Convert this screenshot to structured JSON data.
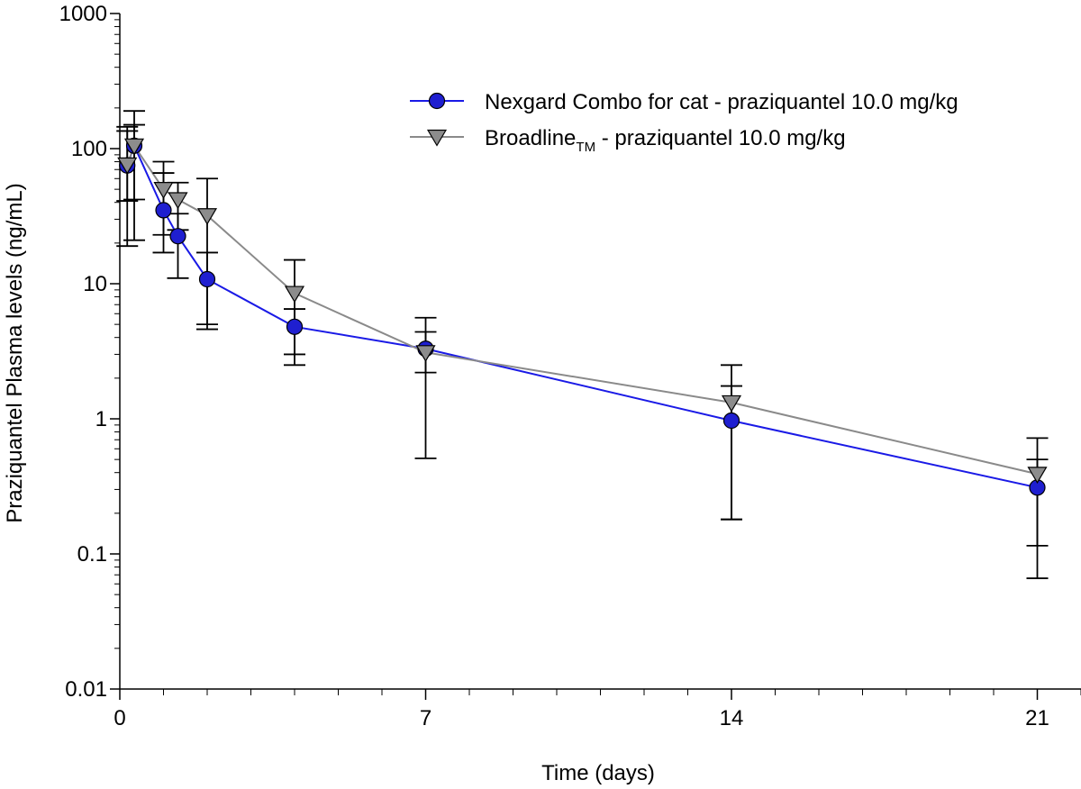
{
  "chart_data": {
    "type": "line",
    "title": "",
    "xlabel": "Time (days)",
    "ylabel": "Praziquantel Plasma levels (ng/mL)",
    "xlim": [
      0,
      22
    ],
    "ylim": [
      0.01,
      1000
    ],
    "yscale": "log",
    "grid": false,
    "legend_position": "top-right",
    "x_ticks": [
      0,
      7,
      14,
      21
    ],
    "x_tick_labels": [
      "0",
      "7",
      "14",
      "21"
    ],
    "y_ticks": [
      0.01,
      0.1,
      1,
      10,
      100,
      1000
    ],
    "y_tick_labels": [
      "0.01",
      "0.1",
      "1",
      "10",
      "100",
      "1000"
    ],
    "series": [
      {
        "name": "Nexgard Combo for cat - praziquantel 10.0 mg/kg",
        "legend_main": "Nexgard Combo for cat - praziquantel 10.0 mg/kg",
        "legend_sub": "",
        "legend_suffix": "",
        "color": "#1f1fd0",
        "line_color": "#1a1ae6",
        "marker": "circle",
        "x": [
          0.17,
          0.33,
          1,
          1.33,
          2,
          4,
          7,
          14,
          21
        ],
        "y": [
          75,
          105,
          35,
          22.5,
          10.8,
          4.8,
          3.3,
          0.97,
          0.31
        ],
        "err_low": [
          19,
          42,
          17,
          11,
          4.6,
          2.5,
          2.2,
          0.18,
          0.066
        ],
        "err_high": [
          135,
          150,
          66,
          33,
          17,
          6.5,
          4.4,
          1.75,
          0.5
        ]
      },
      {
        "name": "Broadline TM - praziquantel 10.0 mg/kg",
        "legend_main": "Broadline",
        "legend_sub": "TM",
        "legend_suffix": " - praziquantel 10.0 mg/kg",
        "color": "#8c8c8c",
        "line_color": "#8a8a8a",
        "marker": "triangle-down",
        "x": [
          0.17,
          0.33,
          1,
          1.33,
          2,
          4,
          7,
          14,
          21
        ],
        "y": [
          76,
          105,
          50,
          42,
          32,
          8.5,
          3.1,
          1.32,
          0.39
        ],
        "err_low": [
          41,
          21,
          23,
          25,
          5,
          3,
          0.51,
          0.18,
          0.115
        ],
        "err_high": [
          145,
          190,
          80,
          56,
          60,
          15,
          5.6,
          2.5,
          0.72
        ]
      }
    ]
  }
}
